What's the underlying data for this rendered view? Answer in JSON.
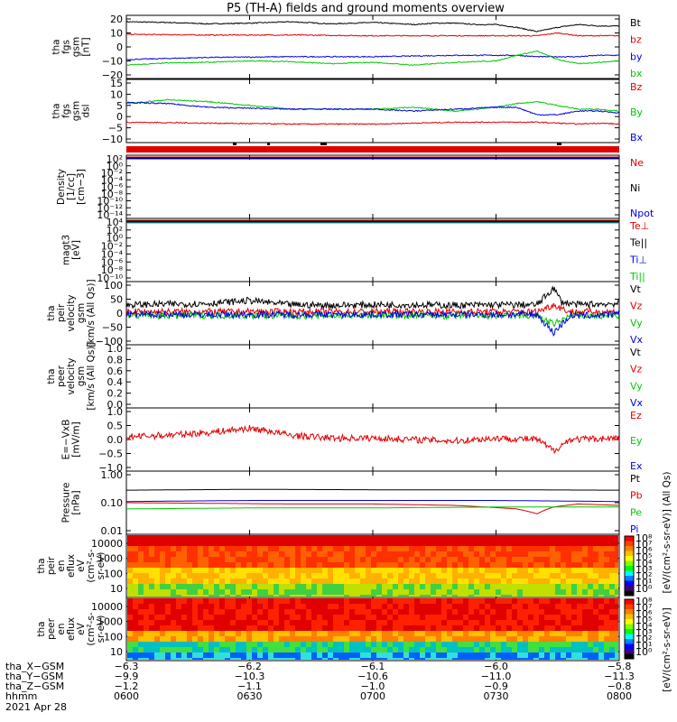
{
  "title": "P5 (TH-A) fields and ground moments overview",
  "colors": {
    "black": "#000000",
    "red": "#e00000",
    "green": "#00c800",
    "blue": "#0000e0"
  },
  "chart_data": [
    {
      "type": "line",
      "ylabel": [
        "tha",
        "fgs",
        "gsm",
        "[nT]"
      ],
      "ylim": [
        -20,
        20
      ],
      "yticks": [
        "20",
        "10",
        "0",
        "−10",
        "−20"
      ],
      "series": [
        {
          "name": "Bt",
          "color": "black",
          "x": [
            0,
            10,
            20,
            30,
            40,
            50,
            60,
            70,
            75,
            80,
            85,
            90,
            95,
            100,
            105,
            110,
            115,
            120
          ],
          "values": [
            18,
            17.5,
            16.5,
            17,
            18,
            16.5,
            17.5,
            16,
            17,
            17,
            16,
            16,
            14,
            11,
            14,
            16,
            15,
            15
          ]
        },
        {
          "name": "bz",
          "color": "red",
          "x": [
            0,
            20,
            40,
            60,
            80,
            95,
            100,
            105,
            110,
            115,
            120
          ],
          "values": [
            9,
            8.5,
            8.5,
            8,
            8,
            8,
            8,
            10,
            8,
            8,
            8
          ]
        },
        {
          "name": "by",
          "color": "blue",
          "x": [
            0,
            20,
            40,
            60,
            80,
            95,
            100,
            105,
            110,
            115,
            120
          ],
          "values": [
            -9,
            -7.5,
            -7,
            -7,
            -6,
            -6,
            -7,
            -7,
            -7,
            -6,
            -6
          ]
        },
        {
          "name": "bx",
          "color": "green",
          "x": [
            0,
            10,
            20,
            30,
            40,
            50,
            60,
            70,
            80,
            90,
            95,
            100,
            105,
            110,
            115,
            120
          ],
          "values": [
            -13,
            -11.5,
            -11,
            -10,
            -10.5,
            -12,
            -11,
            -13,
            -11,
            -10,
            -6,
            -3,
            -9,
            -12,
            -11,
            -10
          ]
        }
      ]
    },
    {
      "type": "line",
      "ylabel": [
        "tha",
        "fgs",
        "gsm",
        "dsl"
      ],
      "ylim": [
        -15,
        15
      ],
      "yticks": [
        "15",
        "10",
        "5",
        "0",
        "−5",
        "−10"
      ],
      "series": [
        {
          "name": "Bz",
          "color": "red",
          "x": [
            0,
            20,
            40,
            60,
            80,
            95,
            100,
            105,
            110,
            115,
            120
          ],
          "values": [
            -6,
            -6.5,
            -7,
            -7,
            -6,
            -6,
            -6,
            -6.5,
            -7,
            -6.5,
            -7
          ]
        },
        {
          "name": "By",
          "color": "green",
          "x": [
            0,
            10,
            20,
            30,
            40,
            50,
            60,
            70,
            80,
            90,
            95,
            100,
            105,
            110,
            115,
            120
          ],
          "values": [
            4,
            6,
            5,
            3,
            1,
            1,
            1,
            2,
            0,
            2,
            4,
            5,
            3,
            1,
            1,
            0
          ]
        },
        {
          "name": "Bx",
          "color": "blue",
          "x": [
            0,
            10,
            20,
            30,
            40,
            50,
            60,
            70,
            80,
            90,
            95,
            100,
            105,
            110,
            115,
            120
          ],
          "values": [
            4.5,
            4,
            2,
            1.5,
            1,
            1,
            1,
            0,
            1,
            2,
            2,
            -2,
            -2,
            0,
            0,
            -1
          ]
        }
      ]
    },
    {
      "type": "line",
      "ylabel": [
        "Density",
        "[1/cc]",
        "[cm−3]"
      ],
      "scale": "log",
      "yticks": [
        "10²",
        "10⁰",
        "10⁻²",
        "10⁻⁴",
        "10⁻⁶",
        "10⁻⁸",
        "10⁻¹⁰",
        "10⁻¹²",
        "10⁻¹⁴"
      ],
      "series": [
        {
          "name": "Ne",
          "color": "red"
        },
        {
          "name": "Ni",
          "color": "black"
        },
        {
          "name": "Npot",
          "color": "blue"
        }
      ]
    },
    {
      "type": "line",
      "ylabel": [
        "magt3",
        "[eV]"
      ],
      "scale": "log",
      "yticks": [
        "10⁴",
        "10²",
        "10⁰",
        "10⁻²",
        "10⁻⁴",
        "10⁻⁶",
        "10⁻⁸",
        "10⁻¹⁰"
      ],
      "series": [
        {
          "name": "Te⊥",
          "color": "red"
        },
        {
          "name": "Te||",
          "color": "black"
        },
        {
          "name": "Ti⊥",
          "color": "blue"
        },
        {
          "name": "Ti||",
          "color": "green"
        }
      ]
    },
    {
      "type": "line",
      "ylabel": [
        "tha",
        "peir",
        "velocity",
        "gsm",
        "[km/s (All Qs)]"
      ],
      "ylim": [
        -100,
        100
      ],
      "yticks": [
        "100",
        "50",
        "0",
        "−50",
        "−100"
      ],
      "series": [
        {
          "name": "Vt",
          "color": "black",
          "x": [
            0,
            10,
            20,
            30,
            40,
            50,
            60,
            70,
            80,
            90,
            100,
            104,
            106,
            110,
            120
          ],
          "values": [
            30,
            32,
            35,
            45,
            30,
            28,
            30,
            30,
            28,
            30,
            30,
            90,
            40,
            30,
            35
          ]
        },
        {
          "name": "Vz",
          "color": "red",
          "x": [
            0,
            20,
            40,
            60,
            80,
            100,
            104,
            108,
            120
          ],
          "values": [
            5,
            5,
            5,
            5,
            5,
            5,
            30,
            5,
            5
          ]
        },
        {
          "name": "Vy",
          "color": "green",
          "x": [
            0,
            20,
            40,
            60,
            80,
            100,
            104,
            108,
            120
          ],
          "values": [
            -10,
            -8,
            -10,
            -8,
            -10,
            -10,
            -40,
            -10,
            -10
          ]
        },
        {
          "name": "Vx",
          "color": "blue",
          "x": [
            0,
            20,
            40,
            60,
            80,
            100,
            104,
            108,
            120
          ],
          "values": [
            -5,
            -5,
            -5,
            -5,
            -5,
            -5,
            -70,
            -10,
            -5
          ]
        }
      ]
    },
    {
      "type": "line",
      "ylabel": [
        "tha",
        "peer",
        "velocity",
        "gsm",
        "[km/s (All Qs)]"
      ],
      "ylim": [
        0,
        1
      ],
      "yticks": [
        "1.0",
        "0.8",
        "0.6",
        "0.4",
        "0.2",
        "0.0"
      ],
      "series": [
        {
          "name": "Vt",
          "color": "black"
        },
        {
          "name": "Vz",
          "color": "red"
        },
        {
          "name": "Vy",
          "color": "green"
        },
        {
          "name": "Vx",
          "color": "blue"
        }
      ]
    },
    {
      "type": "line",
      "ylabel": [
        "E=−VxB",
        "[mV/m]"
      ],
      "ylim": [
        -1,
        1
      ],
      "yticks": [
        "1.0",
        "0.5",
        "0.0",
        "−0.5",
        "−1.0"
      ],
      "series": [
        {
          "name": "Ez",
          "color": "red",
          "x": [
            0,
            10,
            20,
            30,
            35,
            40,
            50,
            60,
            70,
            80,
            90,
            100,
            104,
            108,
            120
          ],
          "values": [
            0.1,
            0.15,
            0.25,
            0.4,
            0.3,
            0.15,
            0.05,
            0.05,
            0,
            -0.05,
            0.05,
            0,
            -0.4,
            0,
            0.05
          ]
        },
        {
          "name": "Ey",
          "color": "green"
        },
        {
          "name": "Ex",
          "color": "blue"
        }
      ]
    },
    {
      "type": "line",
      "ylabel": [
        "Pressure",
        "[nPa]"
      ],
      "scale": "log",
      "yticks": [
        "1.00",
        "0.10",
        "0.01"
      ],
      "series": [
        {
          "name": "Pt",
          "color": "black",
          "x": [
            0,
            30,
            60,
            90,
            120
          ],
          "values": [
            0.28,
            0.3,
            0.29,
            0.29,
            0.28
          ]
        },
        {
          "name": "Pb",
          "color": "red",
          "x": [
            0,
            20,
            40,
            60,
            80,
            95,
            100,
            104,
            110,
            120
          ],
          "values": [
            0.1,
            0.095,
            0.09,
            0.09,
            0.08,
            0.06,
            0.04,
            0.07,
            0.09,
            0.08
          ]
        },
        {
          "name": "Pe",
          "color": "green",
          "x": [
            0,
            30,
            60,
            90,
            120
          ],
          "values": [
            0.06,
            0.065,
            0.065,
            0.07,
            0.07
          ]
        },
        {
          "name": "Pi",
          "color": "blue",
          "x": [
            0,
            30,
            60,
            90,
            120
          ],
          "values": [
            0.11,
            0.12,
            0.12,
            0.12,
            0.11
          ]
        }
      ]
    },
    {
      "type": "heatmap",
      "ylabel": [
        "tha",
        "peir",
        "en",
        "eflux",
        "eV",
        "(cm²-s-",
        "sr-eV)"
      ],
      "scale": "log",
      "yticks": [
        "10000",
        "1000",
        "100",
        "10"
      ],
      "colorbar": [
        "10⁸",
        "10⁷",
        "10⁶",
        "10⁵",
        "10⁴",
        "10³",
        "10²",
        "10¹",
        "10⁰"
      ]
    },
    {
      "type": "heatmap",
      "ylabel": [
        "tha",
        "peer",
        "en",
        "eflux",
        "eV",
        "(cm²-s-",
        "sr-eV)"
      ],
      "scale": "log",
      "yticks": [
        "10000",
        "1000",
        "100",
        "10"
      ],
      "colorbar": [
        "10⁸",
        "10⁷",
        "10⁶",
        "10⁵",
        "10⁴",
        "10³",
        "10²",
        "10¹",
        "10⁰"
      ]
    }
  ],
  "colorbar_label": "[eV/(cm²-s-sr-eV)]",
  "colorbar_label2": "[eV/(cm²-s-sr-eV)] (All Qs)",
  "footer": {
    "rows": [
      {
        "label": "tha_X−GSM",
        "values": [
          "−6.3",
          "−6.2",
          "−6.1",
          "−6.0",
          "−5.8"
        ]
      },
      {
        "label": "tha_Y−GSM",
        "values": [
          "−9.9",
          "−10.3",
          "−10.6",
          "−11.0",
          "−11.3"
        ]
      },
      {
        "label": "tha_Z−GSM",
        "values": [
          "−1.2",
          "−1.1",
          "−1.0",
          "−0.9",
          "−0.8"
        ]
      },
      {
        "label": "hhmm",
        "values": [
          "0600",
          "0630",
          "0700",
          "0730",
          "0800"
        ]
      }
    ],
    "date": "2021 Apr 28"
  }
}
